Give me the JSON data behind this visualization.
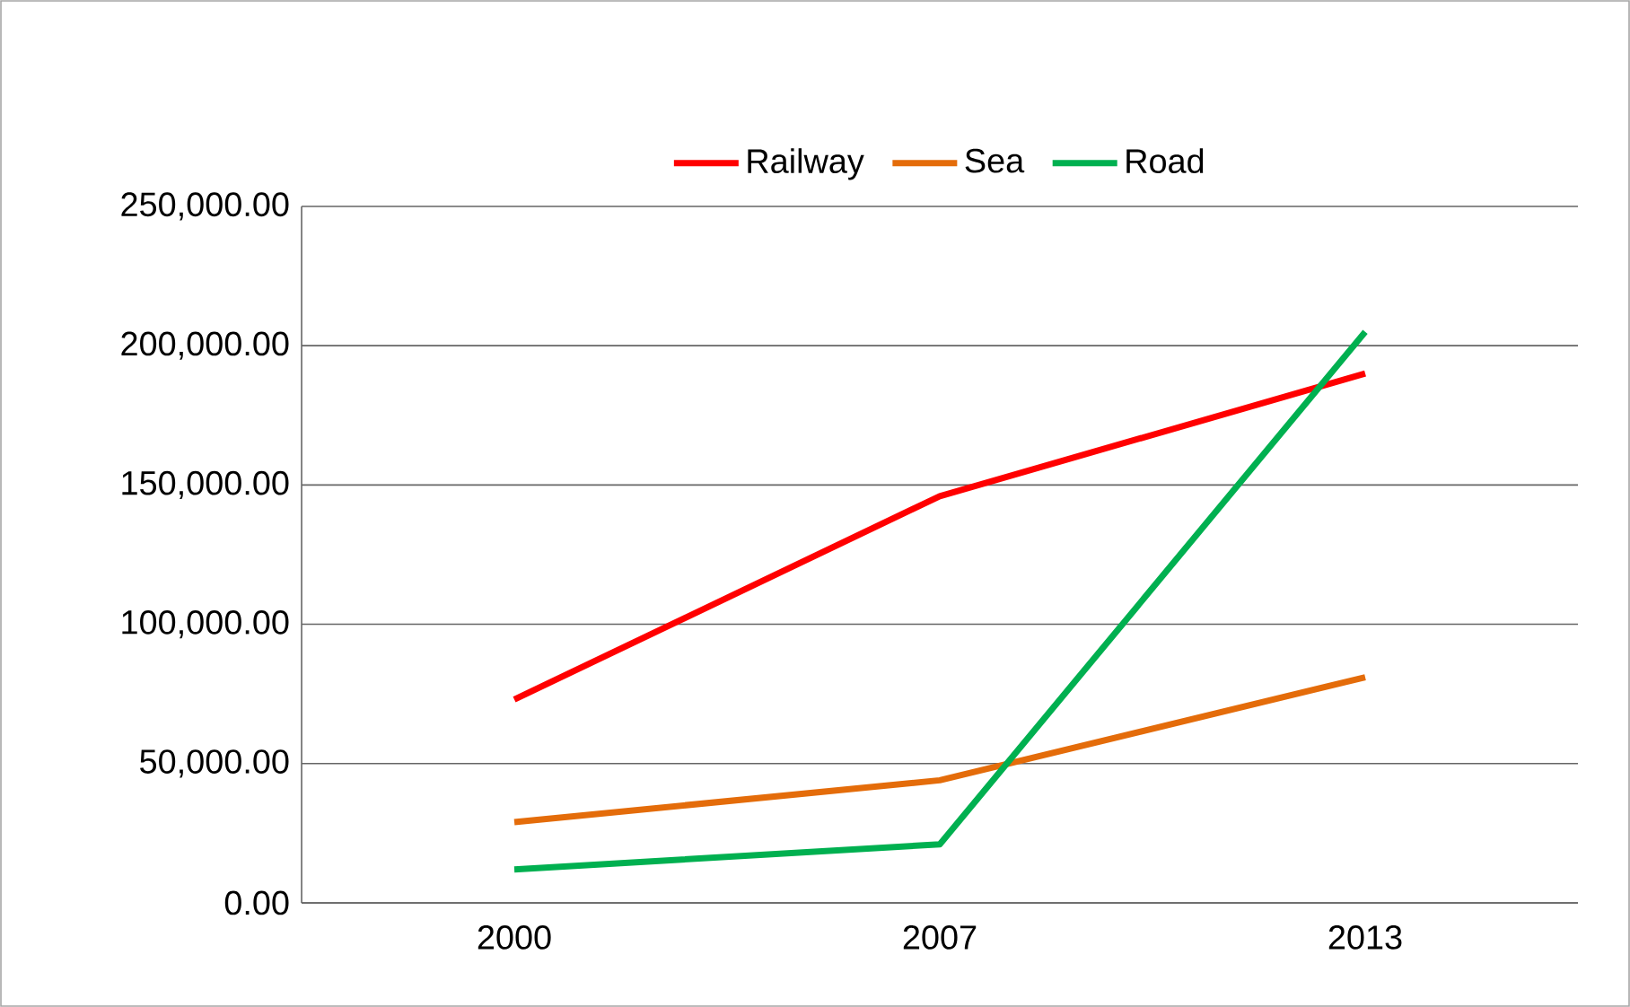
{
  "chart_data": {
    "type": "line",
    "categories": [
      "2000",
      "2007",
      "2013"
    ],
    "series": [
      {
        "name": "Railway",
        "color": "#ff0000",
        "values": [
          73000,
          146000,
          190000
        ]
      },
      {
        "name": "Sea",
        "color": "#e46c0a",
        "values": [
          29000,
          44000,
          81000
        ]
      },
      {
        "name": "Road",
        "color": "#00b050",
        "values": [
          12000,
          21000,
          205000
        ]
      }
    ],
    "ylim": [
      0,
      250000
    ],
    "yticks": [
      {
        "value": 0,
        "label": "0.00"
      },
      {
        "value": 50000,
        "label": "50,000.00"
      },
      {
        "value": 100000,
        "label": "100,000.00"
      },
      {
        "value": 150000,
        "label": "150,000.00"
      },
      {
        "value": 200000,
        "label": "200,000.00"
      },
      {
        "value": 250000,
        "label": "250,000.00"
      }
    ],
    "grid": "y",
    "legend": "top",
    "marker": "none",
    "line_style": "solid"
  }
}
